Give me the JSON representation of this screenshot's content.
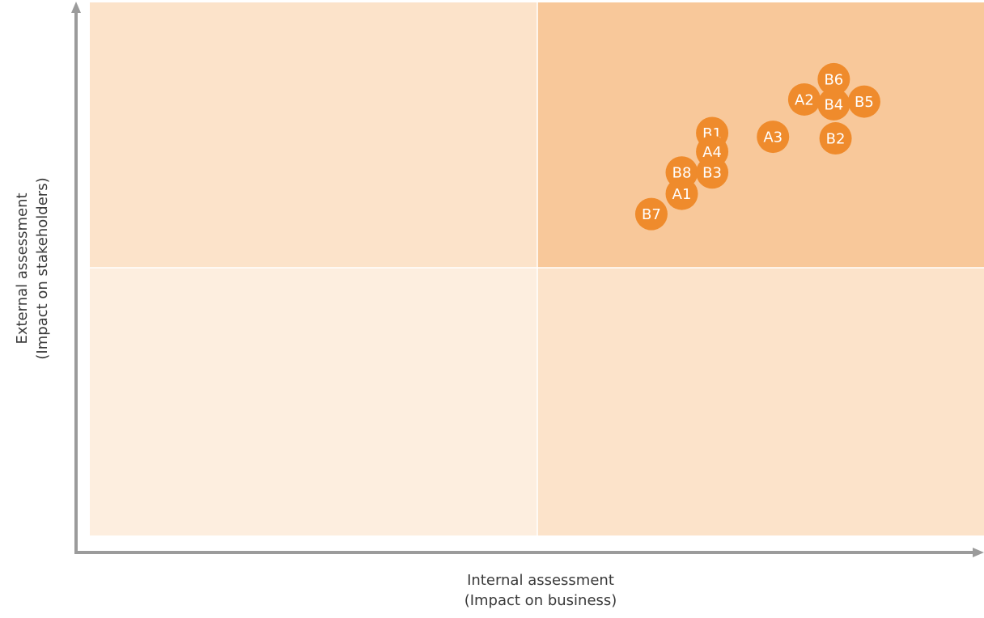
{
  "chart_data": {
    "type": "scatter",
    "title": "",
    "xlabel": [
      "Internal assessment",
      "(Impact on business)"
    ],
    "ylabel": [
      "External assessment",
      "(Impact on stakeholders)"
    ],
    "xlim": [
      0,
      100
    ],
    "ylim": [
      0,
      100
    ],
    "quadrants": [
      {
        "position": "bottom-left",
        "color": "#fdeedf"
      },
      {
        "position": "top-left",
        "color": "#fce3ca"
      },
      {
        "position": "bottom-right",
        "color": "#fce3ca"
      },
      {
        "position": "top-right",
        "color": "#f8c89a"
      }
    ],
    "points": [
      {
        "label": "B6",
        "x": 83.2,
        "y": 85.6
      },
      {
        "label": "A2",
        "x": 79.9,
        "y": 81.8
      },
      {
        "label": "B4",
        "x": 83.2,
        "y": 80.9
      },
      {
        "label": "B5",
        "x": 86.6,
        "y": 81.4
      },
      {
        "label": "B1",
        "x": 69.6,
        "y": 75.5
      },
      {
        "label": "A3",
        "x": 76.4,
        "y": 74.8
      },
      {
        "label": "B2",
        "x": 83.4,
        "y": 74.5
      },
      {
        "label": "A4",
        "x": 69.6,
        "y": 72.0
      },
      {
        "label": "B8",
        "x": 66.2,
        "y": 68.1
      },
      {
        "label": "B3",
        "x": 69.6,
        "y": 68.1
      },
      {
        "label": "A1",
        "x": 66.2,
        "y": 64.1
      },
      {
        "label": "B7",
        "x": 62.8,
        "y": 60.3
      }
    ],
    "marker_color": "#ef8b2c",
    "label_color": "#ffffff",
    "axis_color": "#9b9b9b",
    "grid": false,
    "legend": "none"
  }
}
